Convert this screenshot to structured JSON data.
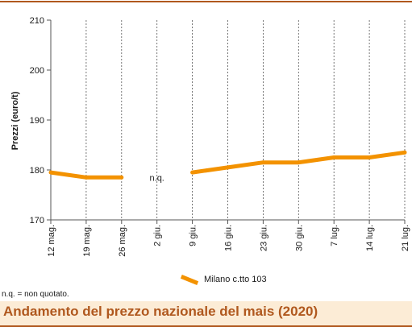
{
  "chart_data": {
    "type": "line",
    "ylabel": "Prezzi (euro/t)",
    "ylim": [
      170,
      210
    ],
    "yticks": [
      170,
      180,
      190,
      200,
      210
    ],
    "categories": [
      "12 mag.",
      "19 mag.",
      "26 mag.",
      "2 giu.",
      "9 giu.",
      "16 giu.",
      "23 giu.",
      "30 giu.",
      "7 lug.",
      "14 lug.",
      "21 lug."
    ],
    "series": [
      {
        "name": "Milano  c.tto 103",
        "color": "#f39200",
        "values": [
          179.5,
          178.5,
          178.5,
          null,
          179.5,
          180.5,
          181.5,
          181.5,
          182.5,
          182.5,
          183.5
        ]
      }
    ],
    "annotations": [
      {
        "text": "n.q.",
        "category": "2 giu.",
        "y": 178.5
      }
    ],
    "grid": "vertical dashed gridlines at each category",
    "legend_position": "bottom"
  },
  "footnote": "n.q. = non quotato.",
  "caption": "Andamento del prezzo nazionale del mais (2020)"
}
